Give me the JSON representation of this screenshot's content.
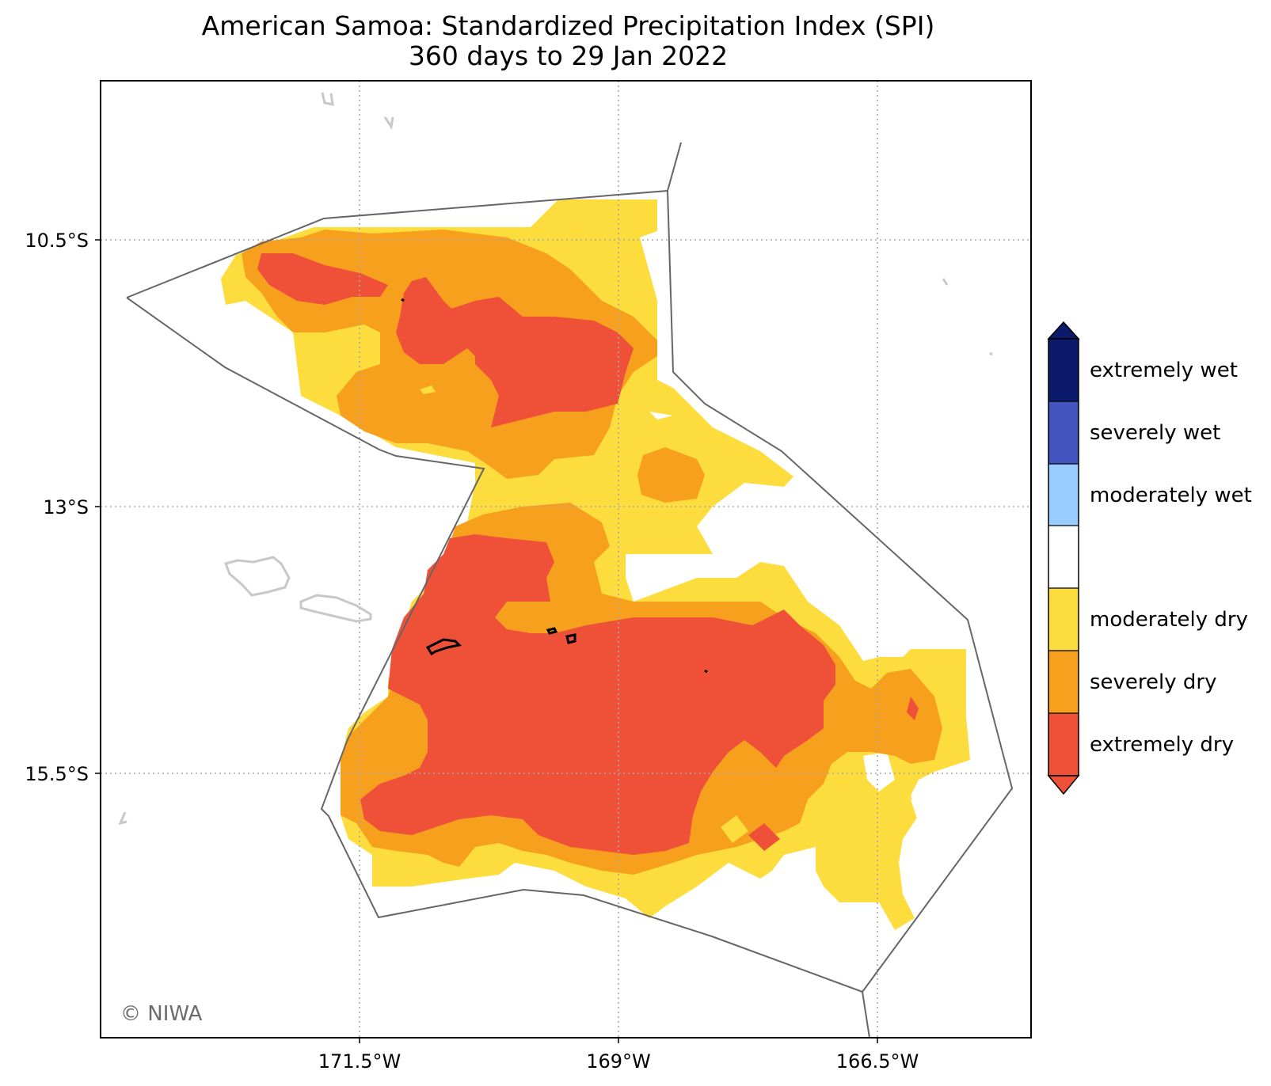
{
  "title": {
    "line1": "American Samoa: Standardized Precipitation Index (SPI)",
    "line2": "360 days to 29 Jan 2022"
  },
  "axes": {
    "x_ticks": [
      "171.5°W",
      "169°W",
      "166.5°W"
    ],
    "y_ticks": [
      "10.5°S",
      "13°S",
      "15.5°S"
    ]
  },
  "legend": {
    "categories": [
      {
        "label": "extremely wet",
        "color": "#0b1a6b"
      },
      {
        "label": "severely wet",
        "color": "#4455c2"
      },
      {
        "label": "moderately wet",
        "color": "#99ccff"
      },
      {
        "label": "",
        "color": "#ffffff"
      },
      {
        "label": "moderately dry",
        "color": "#fddc3d"
      },
      {
        "label": "severely dry",
        "color": "#f7a01e"
      },
      {
        "label": "extremely dry",
        "color": "#ef5038"
      }
    ]
  },
  "credit": "© NIWA",
  "colors": {
    "moderately_dry": "#fddc3d",
    "severely_dry": "#f7a01e",
    "extremely_dry": "#ef5038",
    "eez_boundary": "#666666",
    "coastline_other": "#c8c8c8",
    "coastline_samoa": "#000000"
  }
}
